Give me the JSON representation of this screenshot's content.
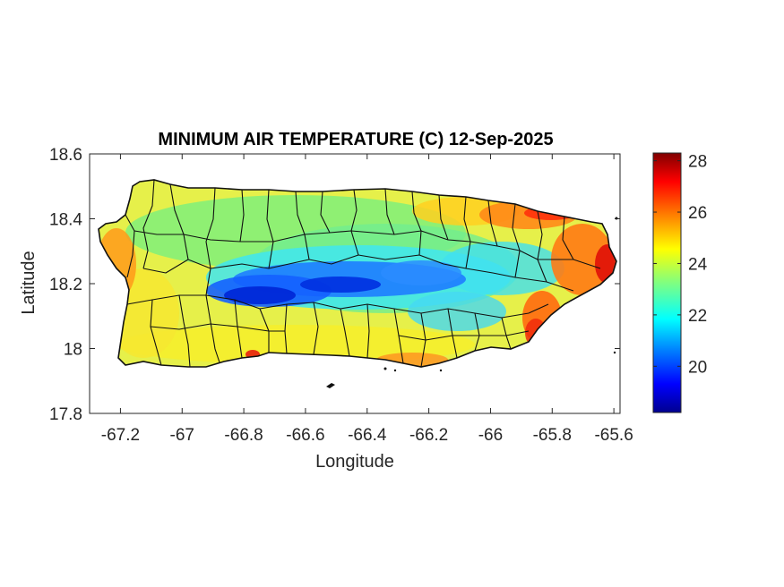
{
  "title": "MINIMUM AIR TEMPERATURE (C) 12-Sep-2025",
  "x_axis": {
    "label": "Longitude",
    "range": [
      -67.3,
      -65.58
    ],
    "ticks": [
      -67.2,
      -67,
      -66.8,
      -66.6,
      -66.4,
      -66.2,
      -66,
      -65.8,
      -65.6
    ],
    "tick_labels": [
      "-67.2",
      "-67",
      "-66.8",
      "-66.6",
      "-66.4",
      "-66.2",
      "-66",
      "-65.8",
      "-65.6"
    ]
  },
  "y_axis": {
    "label": "Latitude",
    "range": [
      17.8,
      18.6
    ],
    "ticks": [
      17.8,
      18,
      18.2,
      18.4,
      18.6
    ],
    "tick_labels": [
      "17.8",
      "18",
      "18.2",
      "18.4",
      "18.6"
    ]
  },
  "colorbar": {
    "colormap": "jet",
    "range": [
      18.2,
      28.3
    ],
    "ticks": [
      20,
      22,
      24,
      26,
      28
    ],
    "tick_labels": [
      "20",
      "22",
      "24",
      "26",
      "28"
    ],
    "colors": [
      "#00008f",
      "#0000ff",
      "#0080ff",
      "#00ffff",
      "#80ff80",
      "#ffff00",
      "#ff8000",
      "#ff0000",
      "#800000"
    ]
  },
  "map": {
    "region": "Puerto Rico",
    "variable": "Minimum air temperature (C)",
    "date": "12-Sep-2025",
    "value_range_shown": [
      18.2,
      28.3
    ],
    "coldest_area": "central mountains near -66.55 to -66.8 longitude, ~18.15-18.2 latitude (~19 C)",
    "warmest_area": "east coast and north-east coast (~27-28 C)"
  }
}
